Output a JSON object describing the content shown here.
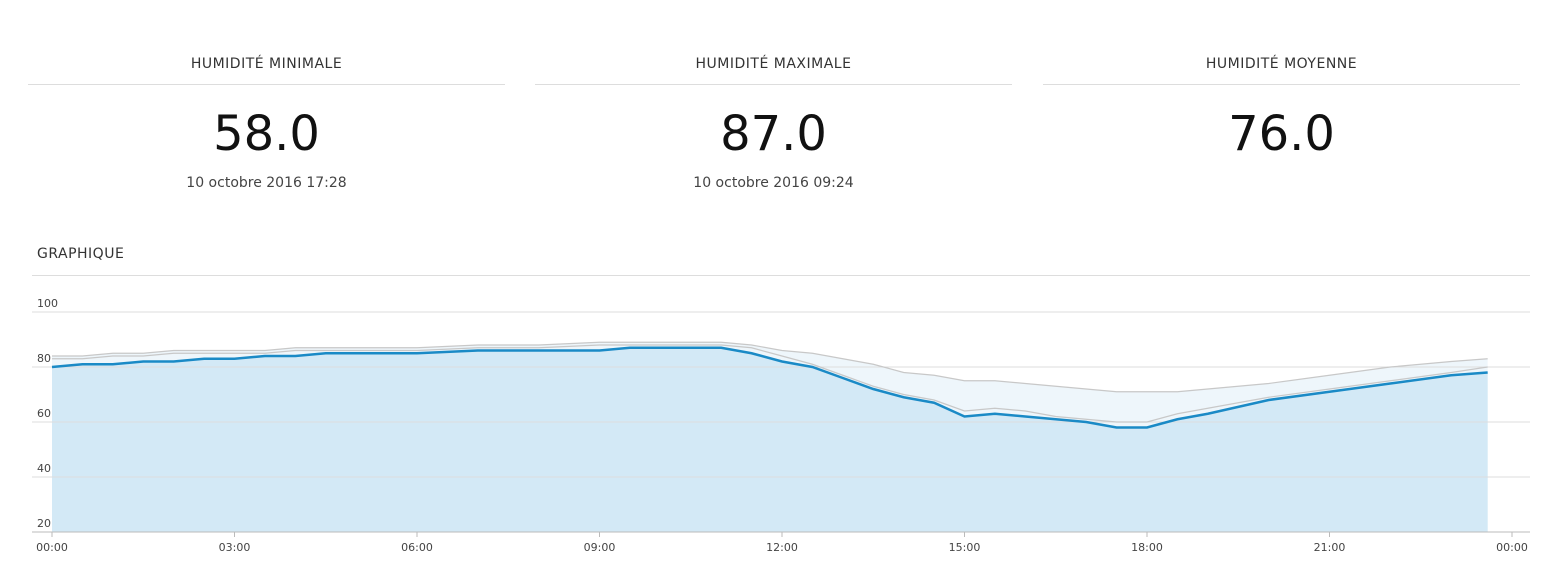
{
  "stats": [
    {
      "title": "HUMIDITÉ MINIMALE",
      "value": "58.0",
      "date": "10 octobre 2016 17:28"
    },
    {
      "title": "HUMIDITÉ MAXIMALE",
      "value": "87.0",
      "date": "10 octobre 2016 09:24"
    },
    {
      "title": "HUMIDITÉ MOYENNE",
      "value": "76.0"
    }
  ],
  "chart_data": {
    "type": "line",
    "title": "GRAPHIQUE",
    "x": [
      0,
      0.5,
      1,
      1.5,
      2,
      2.5,
      3,
      3.5,
      4,
      4.5,
      5,
      6,
      7,
      8,
      9,
      9.5,
      10,
      11,
      11.5,
      12,
      12.5,
      13,
      13.5,
      14,
      14.5,
      15,
      15.5,
      16,
      16.5,
      17,
      17.5,
      18,
      18.5,
      19,
      20,
      21,
      22,
      23,
      23.6
    ],
    "series": [
      {
        "color": "#c8c8c8",
        "fill": "#eef6fb",
        "values": [
          84,
          84,
          85,
          85,
          86,
          86,
          86,
          86,
          87,
          87,
          87,
          87,
          88,
          88,
          89,
          89,
          89,
          89,
          88,
          86,
          85,
          83,
          81,
          78,
          77,
          75,
          75,
          74,
          73,
          72,
          71,
          71,
          71,
          72,
          74,
          77,
          80,
          82,
          83
        ]
      },
      {
        "color": "#1a8ac6",
        "fill": "#d3e9f6",
        "values": [
          80,
          81,
          81,
          82,
          82,
          83,
          83,
          84,
          84,
          85,
          85,
          85,
          86,
          86,
          86,
          87,
          87,
          87,
          85,
          82,
          80,
          76,
          72,
          69,
          67,
          62,
          63,
          62,
          61,
          60,
          58,
          58,
          61,
          63,
          68,
          71,
          74,
          77,
          78
        ]
      },
      {
        "color": "#c8c8c8",
        "values": [
          83,
          83,
          84,
          84,
          85,
          85,
          85,
          85,
          86,
          86,
          86,
          86,
          87,
          87,
          88,
          88,
          88,
          88,
          87,
          84,
          81,
          77,
          73,
          70,
          68,
          64,
          65,
          64,
          62,
          61,
          60,
          60,
          63,
          65,
          69,
          72,
          75,
          78,
          80
        ]
      }
    ],
    "xlim": [
      0,
      24
    ],
    "xticks": [
      {
        "value": 0,
        "label": "00:00"
      },
      {
        "value": 3,
        "label": "03:00"
      },
      {
        "value": 6,
        "label": "06:00"
      },
      {
        "value": 9,
        "label": "09:00"
      },
      {
        "value": 12,
        "label": "12:00"
      },
      {
        "value": 15,
        "label": "15:00"
      },
      {
        "value": 18,
        "label": "18:00"
      },
      {
        "value": 21,
        "label": "21:00"
      },
      {
        "value": 24,
        "label": "00:00"
      }
    ],
    "ylim": [
      20,
      100
    ],
    "yticks": [
      20,
      40,
      60,
      80,
      100
    ],
    "grid": true
  }
}
